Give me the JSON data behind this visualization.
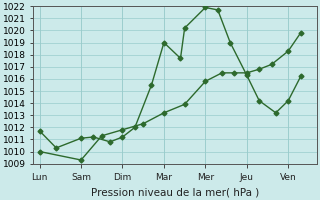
{
  "x_labels": [
    "Lun",
    "Sam",
    "Dim",
    "Mar",
    "Mer",
    "Jeu",
    "Ven"
  ],
  "x_ticks": [
    0,
    1,
    2,
    3,
    4,
    5,
    6
  ],
  "line1_x": [
    0,
    0.4,
    1.0,
    1.3,
    1.7,
    2.0,
    2.3,
    2.7,
    3.0,
    3.4,
    3.5,
    4.0,
    4.3,
    4.6,
    5.0,
    5.3,
    5.7,
    6.0,
    6.3
  ],
  "line1_y": [
    1011.7,
    1010.3,
    1011.1,
    1011.2,
    1010.8,
    1011.2,
    1012.0,
    1015.5,
    1019.0,
    1017.7,
    1020.2,
    1021.9,
    1021.7,
    1019.0,
    1016.3,
    1014.2,
    1013.2,
    1014.2,
    1016.2
  ],
  "line2_x": [
    0,
    1.0,
    1.5,
    2.0,
    2.5,
    3.0,
    3.5,
    4.0,
    4.4,
    4.7,
    5.0,
    5.3,
    5.6,
    6.0,
    6.3
  ],
  "line2_y": [
    1010.0,
    1009.3,
    1011.3,
    1011.8,
    1012.3,
    1013.2,
    1013.9,
    1015.8,
    1016.5,
    1016.5,
    1016.5,
    1016.8,
    1017.2,
    1018.3,
    1019.8
  ],
  "ylim": [
    1009,
    1022
  ],
  "yticks": [
    1009,
    1010,
    1011,
    1012,
    1013,
    1014,
    1015,
    1016,
    1017,
    1018,
    1019,
    1020,
    1021,
    1022
  ],
  "xlim": [
    -0.15,
    6.7
  ],
  "line_color": "#2d6a2d",
  "bg_color": "#cceaea",
  "grid_color": "#99cccc",
  "xlabel": "Pression niveau de la mer( hPa )",
  "marker": "D",
  "markersize": 2.5,
  "linewidth": 1.0,
  "xlabel_fontsize": 7.5,
  "tick_fontsize": 6.5
}
